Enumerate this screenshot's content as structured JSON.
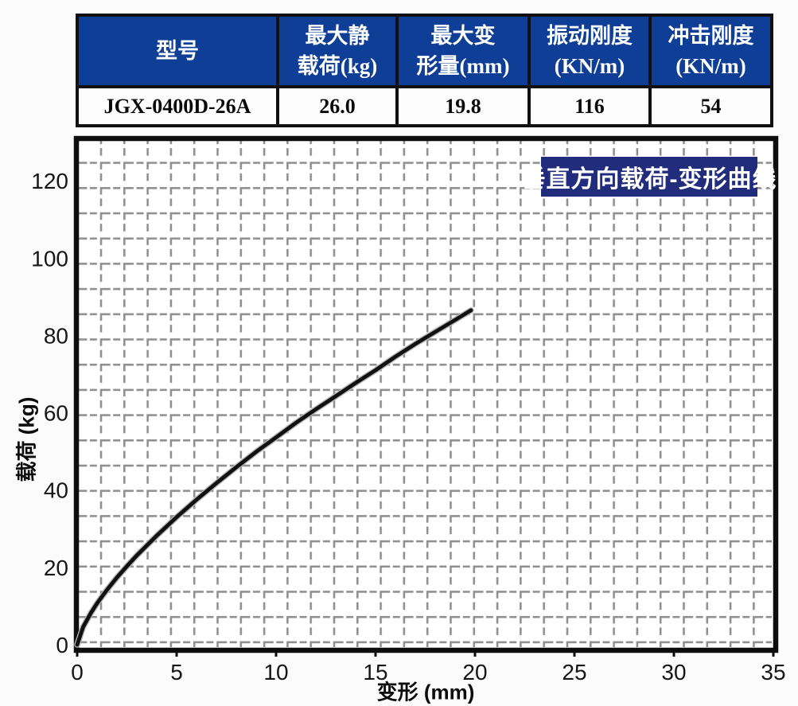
{
  "table": {
    "columns": [
      {
        "line1": "型号",
        "line2": ""
      },
      {
        "line1": "最大静",
        "line2": "载荷(kg)"
      },
      {
        "line1": "最大变",
        "line2": "形量(mm)"
      },
      {
        "line1": "振动刚度",
        "line2": "(KN/m)"
      },
      {
        "line1": "冲击刚度",
        "line2": "(KN/m)"
      }
    ],
    "row": [
      "JGX-0400D-26A",
      "26.0",
      "19.8",
      "116",
      "54"
    ]
  },
  "chart_data": {
    "type": "line",
    "title": "垂直方向载荷-变形曲线",
    "xlabel": "变形 (mm)",
    "ylabel": "载荷 (kg)",
    "xlim": [
      0,
      35
    ],
    "ylim": [
      0,
      130
    ],
    "x_ticks": [
      0,
      5,
      10,
      15,
      20,
      25,
      30,
      35
    ],
    "y_ticks": [
      0,
      20,
      40,
      60,
      80,
      100,
      120
    ],
    "grid": "dashed minor grid, gray",
    "legend_position": "none",
    "series": [
      {
        "name": "垂直方向载荷-变形曲线",
        "x": [
          0,
          0.3,
          0.7,
          1,
          1.5,
          2,
          2.5,
          3,
          4,
          5,
          6,
          7,
          8,
          9,
          10,
          11,
          12,
          13,
          14,
          15,
          16,
          17,
          18,
          19,
          19.8
        ],
        "y": [
          0,
          4.6,
          8.3,
          10.7,
          14.2,
          17.4,
          20.3,
          23.1,
          28.2,
          33.0,
          37.5,
          41.8,
          45.9,
          49.9,
          53.6,
          57.4,
          60.9,
          64.3,
          67.7,
          71.0,
          74.5,
          77.8,
          80.9,
          84.0,
          86.5
        ]
      }
    ],
    "colors": {
      "curve": "#111111",
      "curve_halo": "#b3b3b3",
      "grid": "#909090",
      "plot_border": "#0d0d0d",
      "title_badge_bg": "#212c7d",
      "title_badge_text": "#ffffff",
      "table_header_bg": "#0e3e96",
      "table_header_text": "#ffffff"
    }
  }
}
